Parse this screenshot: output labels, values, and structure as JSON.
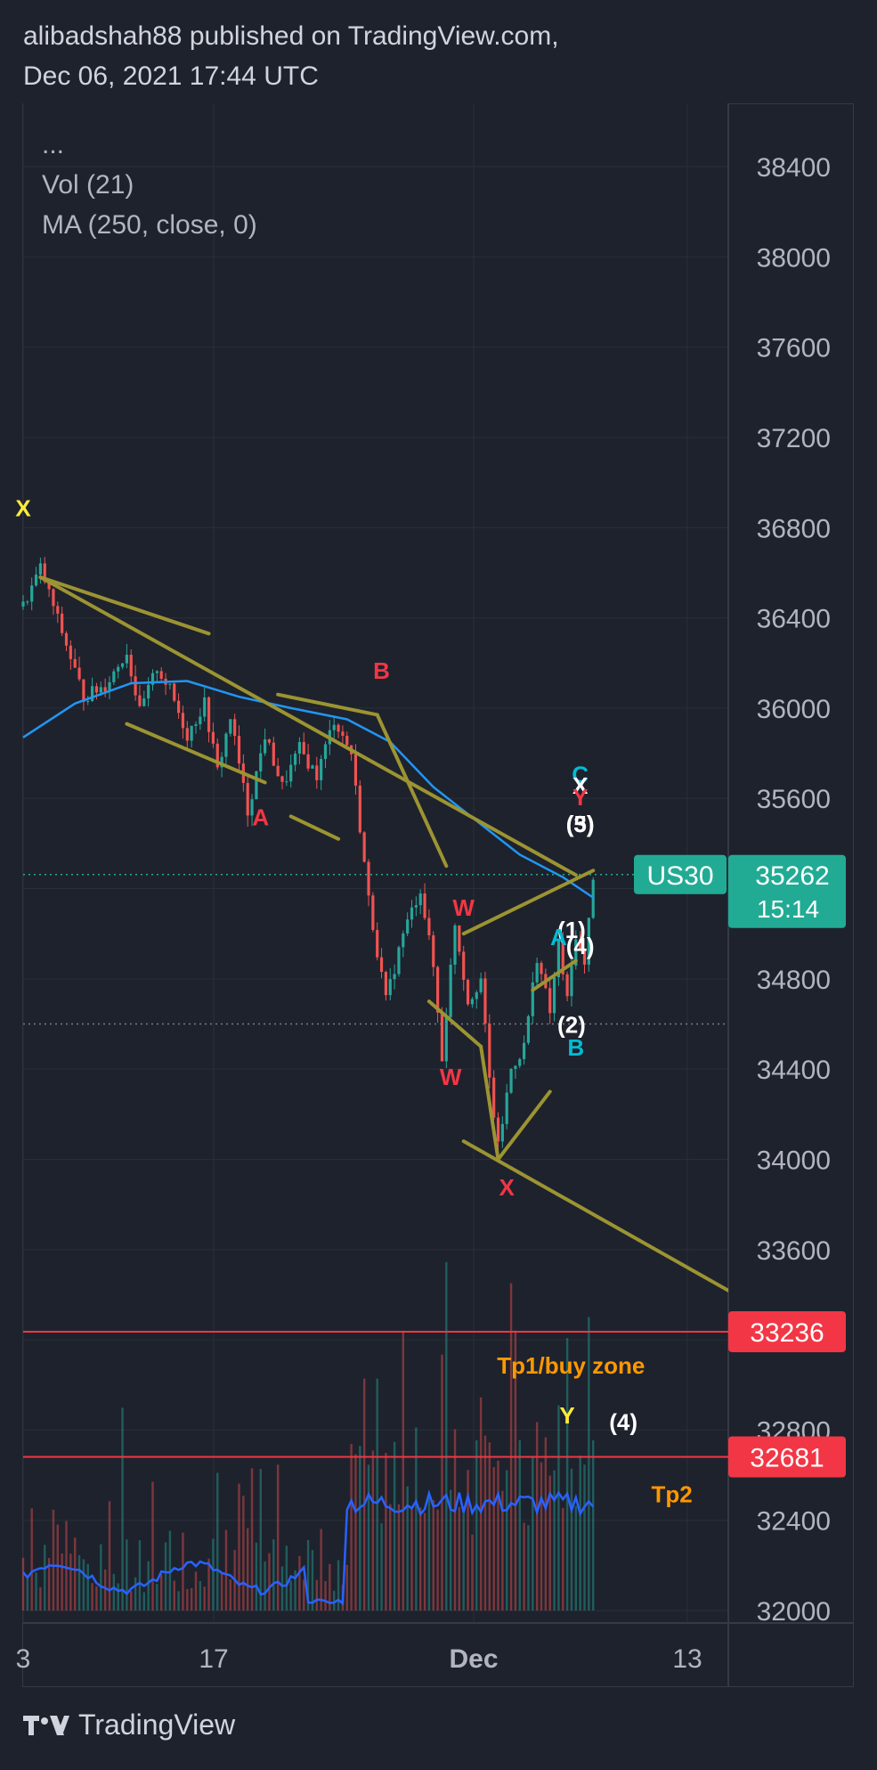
{
  "header": {
    "line1": "alibadshah88 published on TradingView.com,",
    "line2": "Dec 06, 2021 17:44 UTC"
  },
  "legend": {
    "collapsed": "...",
    "volume": "Vol (21)",
    "ma": "MA (250, close, 0)"
  },
  "footer": {
    "brand": "TradingView"
  },
  "colors": {
    "background": "#1e222d",
    "grid": "#2a2e39",
    "up": "#26a69a",
    "down": "#ef5350",
    "ma": "#2196f3",
    "volume_ma": "#2962ff",
    "pattern": "#9c9432",
    "wave_red": "#f23645",
    "wave_yellow": "#ffeb3b",
    "wave_cyan": "#00bcd4",
    "wave_white": "#ffffff",
    "target_text": "#ff9800",
    "hline": "#f23645",
    "price_tag": "#22ab94"
  },
  "chart_data": {
    "type": "candlestick",
    "symbol": "US30",
    "y_axis": {
      "ticks": [
        38400,
        38000,
        37600,
        37200,
        36800,
        36400,
        36000,
        35600,
        35200,
        34800,
        34400,
        34000,
        33600,
        33200,
        32800,
        32400,
        32000
      ],
      "tick_labels": [
        "38400",
        "38000",
        "37600",
        "37200",
        "36800",
        "36400",
        "36000",
        "35600",
        "",
        "34800",
        "34400",
        "34000",
        "33600",
        "",
        "32800",
        "32400",
        "32000"
      ]
    },
    "x_axis": {
      "tick_labels": [
        "3",
        "17",
        "Dec",
        "13"
      ]
    },
    "last_price": {
      "symbol_label": "US30",
      "value": "35262",
      "countdown": "15:14",
      "price": 35262
    },
    "horizontal_lines": [
      {
        "price": 33236,
        "label": "33236"
      },
      {
        "price": 32681,
        "label": "32681"
      }
    ],
    "dotted_level": 34600,
    "ma_label": "MA (250, close, 0)",
    "swing_path_bars": [
      {
        "bar": 0,
        "price": 36450
      },
      {
        "bar": 4,
        "price": 36620
      },
      {
        "bar": 10,
        "price": 36280
      },
      {
        "bar": 14,
        "price": 36050
      },
      {
        "bar": 19,
        "price": 36100
      },
      {
        "bar": 24,
        "price": 36250
      },
      {
        "bar": 27,
        "price": 35980
      },
      {
        "bar": 31,
        "price": 36180
      },
      {
        "bar": 34,
        "price": 36080
      },
      {
        "bar": 38,
        "price": 35880
      },
      {
        "bar": 42,
        "price": 36020
      },
      {
        "bar": 45,
        "price": 35720
      },
      {
        "bar": 48,
        "price": 35960
      },
      {
        "bar": 52,
        "price": 35540
      },
      {
        "bar": 56,
        "price": 35880
      },
      {
        "bar": 60,
        "price": 35650
      },
      {
        "bar": 64,
        "price": 35820
      },
      {
        "bar": 68,
        "price": 35700
      },
      {
        "bar": 72,
        "price": 35950
      },
      {
        "bar": 76,
        "price": 35800
      },
      {
        "bar": 80,
        "price": 35150
      },
      {
        "bar": 84,
        "price": 34700
      },
      {
        "bar": 88,
        "price": 35000
      },
      {
        "bar": 92,
        "price": 35200
      },
      {
        "bar": 95,
        "price": 34850
      },
      {
        "bar": 97,
        "price": 34450
      },
      {
        "bar": 100,
        "price": 35050
      },
      {
        "bar": 103,
        "price": 34700
      },
      {
        "bar": 106,
        "price": 34800
      },
      {
        "bar": 108,
        "price": 34350
      },
      {
        "bar": 110,
        "price": 34050
      },
      {
        "bar": 113,
        "price": 34400
      },
      {
        "bar": 116,
        "price": 34500
      },
      {
        "bar": 119,
        "price": 34900
      },
      {
        "bar": 122,
        "price": 34650
      },
      {
        "bar": 124,
        "price": 34950
      },
      {
        "bar": 126,
        "price": 34700
      },
      {
        "bar": 128,
        "price": 35000
      },
      {
        "bar": 130,
        "price": 34850
      },
      {
        "bar": 132,
        "price": 35262
      }
    ],
    "ma_path": [
      {
        "bar": 0,
        "price": 35870
      },
      {
        "bar": 12,
        "price": 36020
      },
      {
        "bar": 25,
        "price": 36110
      },
      {
        "bar": 38,
        "price": 36120
      },
      {
        "bar": 50,
        "price": 36050
      },
      {
        "bar": 62,
        "price": 36000
      },
      {
        "bar": 75,
        "price": 35950
      },
      {
        "bar": 85,
        "price": 35850
      },
      {
        "bar": 95,
        "price": 35650
      },
      {
        "bar": 105,
        "price": 35500
      },
      {
        "bar": 115,
        "price": 35350
      },
      {
        "bar": 125,
        "price": 35250
      },
      {
        "bar": 132,
        "price": 35160
      }
    ],
    "pattern_lines": [
      {
        "from": {
          "bar": 4,
          "price": 36580
        },
        "to": {
          "bar": 43,
          "price": 36330
        }
      },
      {
        "from": {
          "bar": 4,
          "price": 36580
        },
        "to": {
          "bar": 128,
          "price": 35260
        }
      },
      {
        "from": {
          "bar": 24,
          "price": 35930
        },
        "to": {
          "bar": 56,
          "price": 35670
        }
      },
      {
        "from": {
          "bar": 59,
          "price": 36060
        },
        "to": {
          "bar": 82,
          "price": 35970
        }
      },
      {
        "from": {
          "bar": 62,
          "price": 35520
        },
        "to": {
          "bar": 73,
          "price": 35420
        }
      },
      {
        "from": {
          "bar": 82,
          "price": 35970
        },
        "to": {
          "bar": 98,
          "price": 35300
        }
      },
      {
        "from": {
          "bar": 94,
          "price": 34700
        },
        "to": {
          "bar": 106,
          "price": 34500
        }
      },
      {
        "from": {
          "bar": 106,
          "price": 34500
        },
        "to": {
          "bar": 110,
          "price": 34000
        }
      },
      {
        "from": {
          "bar": 102,
          "price": 35000
        },
        "to": {
          "bar": 132,
          "price": 35280
        }
      },
      {
        "from": {
          "bar": 118,
          "price": 34750
        },
        "to": {
          "bar": 128,
          "price": 34880
        }
      },
      {
        "from": {
          "bar": 110,
          "price": 34000
        },
        "to": {
          "bar": 122,
          "price": 34300
        }
      },
      {
        "from": {
          "bar": 102,
          "price": 34080
        },
        "to": {
          "bar": 165,
          "price": 33400
        }
      }
    ],
    "annotations": [
      {
        "text": "X",
        "bar": 0,
        "price": 36850,
        "color": "yellow"
      },
      {
        "text": "B",
        "bar": 83,
        "price": 36130,
        "color": "red"
      },
      {
        "text": "A",
        "bar": 55,
        "price": 35480,
        "color": "red"
      },
      {
        "text": "W",
        "bar": 102,
        "price": 35080,
        "color": "red"
      },
      {
        "text": "W",
        "bar": 99,
        "price": 34330,
        "color": "red"
      },
      {
        "text": "X",
        "bar": 112,
        "price": 33840,
        "color": "red"
      },
      {
        "text": "C",
        "bar": 129,
        "price": 35670,
        "color": "cyan"
      },
      {
        "text": "X",
        "bar": 129,
        "price": 35620,
        "color": "white"
      },
      {
        "text": "Y",
        "bar": 129,
        "price": 35570,
        "color": "red"
      },
      {
        "text": "(5)",
        "bar": 129,
        "price": 35450,
        "color": "white"
      },
      {
        "text": "(3)",
        "bar": 129,
        "price": 35450,
        "color": "white"
      },
      {
        "text": "(1)",
        "bar": 127,
        "price": 34980,
        "color": "white"
      },
      {
        "text": "A",
        "bar": 124,
        "price": 34950,
        "color": "cyan"
      },
      {
        "text": "(4)",
        "bar": 129,
        "price": 34910,
        "color": "white"
      },
      {
        "text": "(2)",
        "bar": 127,
        "price": 34560,
        "color": "white"
      },
      {
        "text": "B",
        "bar": 128,
        "price": 34460,
        "color": "cyan"
      },
      {
        "text": "Tp1/buy zone",
        "bar": 144,
        "price": 33050,
        "color": "orange"
      },
      {
        "text": "Y",
        "bar": 126,
        "price": 32830,
        "color": "yellow"
      },
      {
        "text": "(4)",
        "bar": 139,
        "price": 32800,
        "color": "white"
      },
      {
        "text": "Tp2",
        "bar": 155,
        "price": 32480,
        "color": "orange"
      }
    ]
  }
}
